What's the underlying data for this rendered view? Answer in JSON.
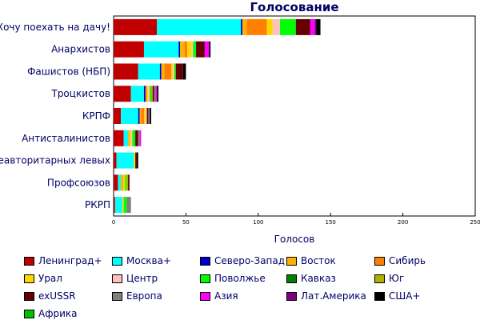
{
  "chart_data": {
    "type": "bar",
    "orientation": "horizontal",
    "stacked": true,
    "title": "Голосование",
    "xlabel": "Голосов",
    "ylabel": "",
    "xlim": [
      0,
      250
    ],
    "xticks": [
      0,
      50,
      100,
      150,
      200,
      250
    ],
    "grid": false,
    "legend_position": "bottom",
    "categories": [
      "Хочу поехать на дачу!",
      "Анархистов",
      "Фашистов (НБП)",
      "Троцкистов",
      "КРПФ",
      "Антисталинистов",
      "Неавторитарных левых",
      "Профсоюзов",
      "РКРП"
    ],
    "series": [
      {
        "name": "Ленинград+",
        "color": "#c00000",
        "values": [
          30,
          21,
          17,
          12,
          5,
          7,
          2,
          3,
          1
        ]
      },
      {
        "name": "Москва+",
        "color": "#00ffff",
        "values": [
          58,
          24,
          15,
          9,
          12,
          3,
          12,
          2,
          5
        ]
      },
      {
        "name": "Северо-Запад",
        "color": "#0000cc",
        "values": [
          1,
          1,
          1,
          1,
          1,
          0,
          0,
          0,
          0
        ]
      },
      {
        "name": "Восток",
        "color": "#ffb000",
        "values": [
          3,
          3,
          2,
          0,
          1,
          1,
          0,
          2,
          0
        ]
      },
      {
        "name": "Сибирь",
        "color": "#ff8000",
        "values": [
          14,
          2,
          5,
          1,
          2,
          0,
          0,
          0,
          0
        ]
      },
      {
        "name": "Урал",
        "color": "#ffd700",
        "values": [
          4,
          3,
          1,
          1,
          1,
          1,
          1,
          1,
          1
        ]
      },
      {
        "name": "Центр",
        "color": "#ffc0c0",
        "values": [
          5,
          1,
          1,
          1,
          1,
          1,
          0,
          0,
          0
        ]
      },
      {
        "name": "Поволжье",
        "color": "#00ff00",
        "values": [
          11,
          2,
          1,
          1,
          0,
          2,
          0,
          1,
          2
        ]
      },
      {
        "name": "Кавказ",
        "color": "#008000",
        "values": [
          0,
          0,
          0,
          0,
          0,
          0,
          0,
          0,
          0
        ]
      },
      {
        "name": "Юг",
        "color": "#b0b000",
        "values": [
          0,
          0,
          0,
          1,
          0,
          0,
          0,
          1,
          0
        ]
      },
      {
        "name": "exUSSR",
        "color": "#660000",
        "values": [
          10,
          6,
          5,
          1,
          1,
          2,
          1,
          1,
          0
        ]
      },
      {
        "name": "Европа",
        "color": "#808080",
        "values": [
          0,
          0,
          0,
          1,
          1,
          1,
          0,
          0,
          3
        ]
      },
      {
        "name": "Азия",
        "color": "#ff00ff",
        "values": [
          3,
          3,
          0,
          1,
          0,
          1,
          0,
          0,
          0
        ]
      },
      {
        "name": "Лат.Америка",
        "color": "#800080",
        "values": [
          1,
          0,
          0,
          0,
          0,
          0,
          0,
          0,
          0
        ]
      },
      {
        "name": "США+",
        "color": "#000000",
        "values": [
          3,
          1,
          2,
          1,
          1,
          0,
          1,
          0,
          0
        ]
      },
      {
        "name": "Африка",
        "color": "#00c000",
        "values": [
          0,
          0,
          0,
          0,
          0,
          0,
          0,
          0,
          0
        ]
      }
    ]
  }
}
